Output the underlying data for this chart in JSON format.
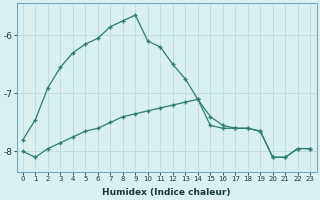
{
  "xlabel": "Humidex (Indice chaleur)",
  "ylabel": "",
  "bg_color": "#d8f0f0",
  "grid_color": "#c0dede",
  "line_color": "#2e7d6e",
  "xlim": [
    -0.5,
    23.5
  ],
  "ylim": [
    -8.35,
    -5.45
  ],
  "yticks": [
    -8,
    -7,
    -6
  ],
  "xticks": [
    0,
    1,
    2,
    3,
    4,
    5,
    6,
    7,
    8,
    9,
    10,
    11,
    12,
    13,
    14,
    15,
    16,
    17,
    18,
    19,
    20,
    21,
    22,
    23
  ],
  "series1_x": [
    0,
    1,
    2,
    3,
    4,
    5,
    6,
    7,
    8,
    9,
    10,
    11,
    12,
    13,
    14,
    15,
    16,
    17,
    18,
    19,
    20,
    21,
    22,
    23
  ],
  "series1_y": [
    -7.8,
    -7.45,
    -6.9,
    -6.55,
    -6.3,
    -6.15,
    -6.05,
    -5.85,
    -5.75,
    -5.65,
    -6.1,
    -6.2,
    -6.5,
    -6.75,
    -7.1,
    -7.4,
    -7.55,
    -7.6,
    -7.6,
    -7.65,
    -8.1,
    -8.1,
    -7.95,
    -7.95
  ],
  "series2_x": [
    0,
    1,
    2,
    3,
    4,
    5,
    6,
    7,
    8,
    9,
    10,
    11,
    12,
    13,
    14,
    15,
    16,
    17,
    18,
    19,
    20,
    21,
    22,
    23
  ],
  "series2_y": [
    -8.0,
    -8.1,
    -7.95,
    -7.85,
    -7.75,
    -7.65,
    -7.6,
    -7.5,
    -7.4,
    -7.35,
    -7.3,
    -7.25,
    -7.2,
    -7.15,
    -7.1,
    -7.55,
    -7.6,
    -7.6,
    -7.6,
    -7.65,
    -8.1,
    -8.1,
    -7.95,
    -7.95
  ]
}
